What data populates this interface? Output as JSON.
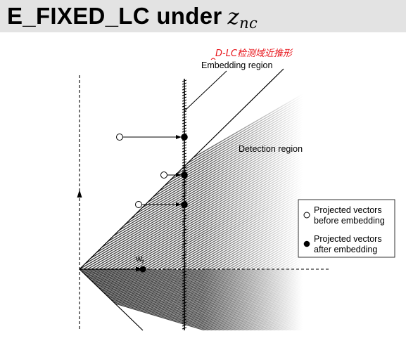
{
  "slide": {
    "title_text": "E_FIXED_LC under",
    "title_math_var": "z",
    "title_math_sub": "nc"
  },
  "diagram": {
    "annotation_handwritten": "D-LC检测域近推形",
    "embedding_label": "Embedding region",
    "detection_label": "Detection region",
    "reference_vector_label": "w",
    "reference_vector_sub": "r",
    "legend": {
      "open_line1": "Projected vectors",
      "open_line2": "before embedding",
      "filled_line1": "Projected vectors",
      "filled_line2": "after embedding"
    }
  }
}
